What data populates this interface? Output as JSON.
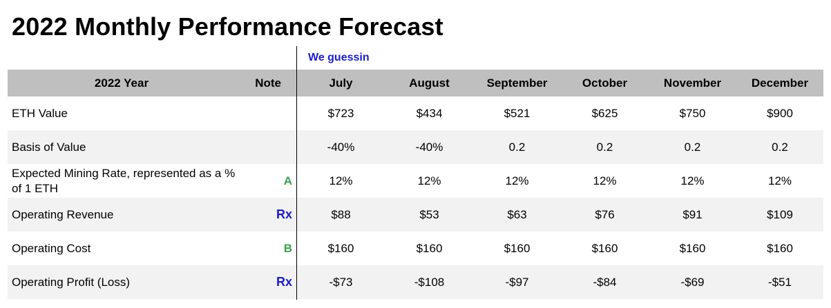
{
  "title": "2022 Monthly Performance Forecast",
  "subtitle": "We guessin",
  "table": {
    "headers": [
      "2022 Year",
      "Note",
      "July",
      "August",
      "September",
      "October",
      "November",
      "December"
    ],
    "rows": [
      {
        "label": "ETH Value",
        "note": "",
        "values": [
          "$723",
          "$434",
          "$521",
          "$625",
          "$750",
          "$900"
        ]
      },
      {
        "label": "Basis of Value",
        "note": "",
        "values": [
          "-40%",
          "-40%",
          "0.2",
          "0.2",
          "0.2",
          "0.2"
        ]
      },
      {
        "label": "Expected Mining Rate, represented as a % of 1 ETH",
        "note": "A",
        "values": [
          "12%",
          "12%",
          "12%",
          "12%",
          "12%",
          "12%"
        ]
      },
      {
        "label": "Operating Revenue",
        "note": "Rx",
        "values": [
          "$88",
          "$53",
          "$63",
          "$76",
          "$91",
          "$109"
        ]
      },
      {
        "label": "Operating Cost",
        "note": "B",
        "values": [
          "$160",
          "$160",
          "$160",
          "$160",
          "$160",
          "$160"
        ]
      },
      {
        "label": "Operating Profit (Loss)",
        "note": "Rx",
        "values": [
          "-$73",
          "-$108",
          "-$97",
          "-$84",
          "-$69",
          "-$51"
        ]
      }
    ]
  },
  "colors": {
    "header_bg": "#bfbfbf",
    "alt_row_bg": "#f2f2f2",
    "note_green": "#3aa14a",
    "note_blue": "#1a1ad6"
  }
}
